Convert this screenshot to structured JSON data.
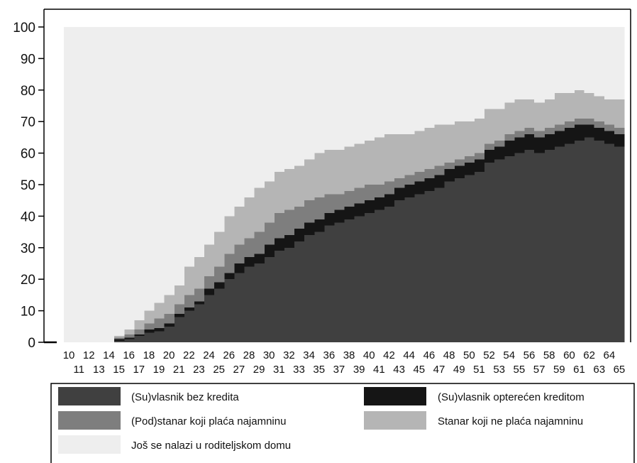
{
  "chart_data": {
    "type": "area",
    "stacked": true,
    "step": true,
    "x": [
      10,
      11,
      12,
      13,
      14,
      15,
      16,
      17,
      18,
      19,
      20,
      21,
      22,
      23,
      24,
      25,
      26,
      27,
      28,
      29,
      30,
      31,
      32,
      33,
      34,
      35,
      36,
      37,
      38,
      39,
      40,
      41,
      42,
      43,
      44,
      45,
      46,
      47,
      48,
      49,
      50,
      51,
      52,
      53,
      54,
      55,
      56,
      57,
      58,
      59,
      60,
      61,
      62,
      63,
      64,
      65
    ],
    "xlim": [
      10,
      65
    ],
    "ylim": [
      0,
      100
    ],
    "yticks": [
      0,
      10,
      20,
      30,
      40,
      50,
      60,
      70,
      80,
      90,
      100
    ],
    "grid": false,
    "legend_position": "bottom",
    "series": [
      {
        "name": "(Su)vlasnik bez kredita",
        "color": "#404040",
        "values": [
          0,
          0,
          0,
          0,
          0,
          0.5,
          1,
          2,
          3,
          3.5,
          5,
          8,
          10,
          12,
          15,
          17,
          20,
          22,
          24,
          25,
          27,
          29,
          30,
          32,
          34,
          35,
          37,
          38,
          39,
          40,
          41,
          42,
          43,
          45,
          46,
          47,
          48,
          49,
          51,
          52,
          53,
          54,
          57,
          58,
          59,
          60,
          61,
          60,
          61,
          62,
          63,
          64,
          65,
          64,
          63,
          62
        ]
      },
      {
        "name": "(Su)vlasnik opterećen kreditom",
        "color": "#151515",
        "values": [
          0,
          0,
          0,
          0,
          0,
          0.5,
          0.5,
          0.5,
          1,
          1,
          1,
          1,
          1,
          1,
          2,
          2,
          2,
          3,
          3,
          3,
          4,
          4,
          4,
          4,
          4,
          4,
          4,
          4,
          4,
          4,
          4,
          4,
          4,
          4,
          4,
          4,
          4,
          4,
          4,
          4,
          4,
          4,
          4,
          4,
          5,
          5,
          5,
          5,
          5,
          5,
          5,
          5,
          4,
          4,
          4,
          4
        ]
      },
      {
        "name": "(Pod)stanar koji plaća najamninu",
        "color": "#7e7e7e",
        "values": [
          0,
          0,
          0,
          0,
          0,
          0.5,
          1,
          1.5,
          2,
          3,
          3,
          3,
          4,
          4,
          4,
          5,
          6,
          6,
          6,
          7,
          7,
          8,
          8,
          7,
          7,
          7,
          6,
          5,
          5,
          5,
          5,
          4,
          4,
          3,
          3,
          3,
          3,
          3,
          2,
          2,
          2,
          2,
          2,
          2,
          2,
          2,
          2,
          2,
          2,
          2,
          2,
          2,
          2,
          2,
          2,
          2
        ]
      },
      {
        "name": "Stanar koji ne plaća najamninu",
        "color": "#b5b5b5",
        "values": [
          0,
          0,
          0,
          0,
          0,
          0.5,
          1.5,
          3,
          4,
          5,
          6,
          6,
          9,
          10,
          10,
          11,
          12,
          12,
          13,
          14,
          13,
          13,
          13,
          13,
          13,
          14,
          14,
          14,
          14,
          14,
          14,
          15,
          15,
          14,
          13,
          13,
          13,
          13,
          12,
          12,
          11,
          11,
          11,
          10,
          10,
          10,
          9,
          9,
          9,
          10,
          9,
          9,
          8,
          8,
          8,
          9
        ]
      },
      {
        "name": "Još se nalazi u roditeljskom domu",
        "color": "#eeeeee",
        "values": [
          100,
          100,
          100,
          100,
          100,
          98,
          96,
          93,
          90,
          87.5,
          85,
          82,
          76,
          73,
          69,
          65,
          60,
          57,
          54,
          51,
          49,
          46,
          45,
          44,
          42,
          40,
          39,
          39,
          38,
          37,
          36,
          35,
          34,
          34,
          34,
          33,
          32,
          31,
          31,
          30,
          30,
          29,
          26,
          26,
          24,
          23,
          23,
          24,
          23,
          21,
          21,
          20,
          21,
          22,
          23,
          23
        ]
      }
    ],
    "legend": [
      "(Su)vlasnik bez kredita",
      "(Su)vlasnik opterećen kreditom",
      "(Pod)stanar koji plaća najamninu",
      "Stanar koji ne plaća najamninu",
      "Još se nalazi u roditeljskom domu"
    ]
  }
}
